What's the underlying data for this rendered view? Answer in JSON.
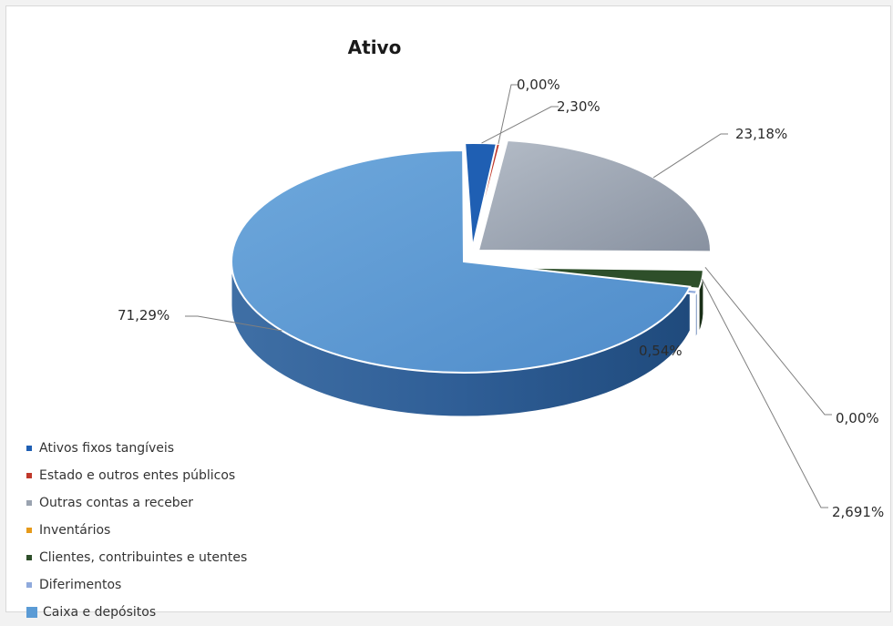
{
  "chart_data": {
    "type": "pie",
    "title": "Ativo",
    "legend_position": "bottom-left",
    "style": "3d-exploded",
    "categories": [
      "Ativos fixos tangíveis",
      "Estado e outros entes públicos",
      "Outras contas a receber",
      "Inventários",
      "Clientes, contribuintes e utentes",
      "Diferimentos",
      "Caixa e depósitos"
    ],
    "values": [
      2.3,
      0.0,
      23.18,
      0.0,
      2.69,
      0.54,
      71.29
    ],
    "labels": [
      "2,30%",
      "0,00%",
      "23,18%",
      "0,00%",
      "2,691%",
      "0,54%",
      "71,29%"
    ],
    "colors": [
      "#1f5fb3",
      "#c0392b",
      "#9aa3b0",
      "#e69a1a",
      "#2e4f2a",
      "#8faadc",
      "#5b9bd5"
    ]
  }
}
